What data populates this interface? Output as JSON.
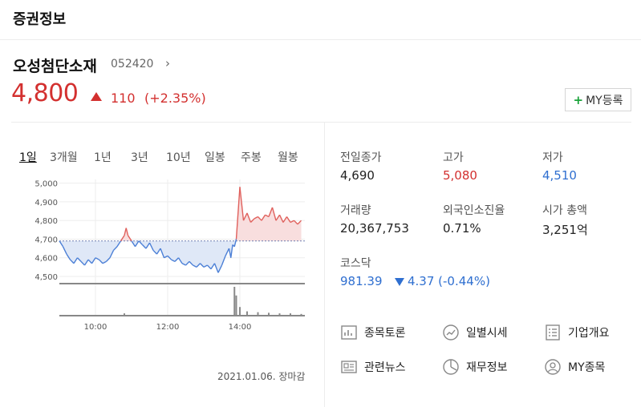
{
  "header": {
    "title": "증권정보"
  },
  "stock": {
    "name": "오성첨단소재",
    "code": "052420",
    "chevron": "›",
    "price": "4,800",
    "change": "110",
    "change_pct": "(+2.35%)",
    "my_button": "MY등록"
  },
  "tabs": [
    "1일",
    "3개월",
    "1년",
    "3년",
    "10년",
    "일봉",
    "주봉",
    "월봉"
  ],
  "stats": {
    "prev_close_label": "전일종가",
    "prev_close": "4,690",
    "high_label": "고가",
    "high": "5,080",
    "low_label": "저가",
    "low": "4,510",
    "volume_label": "거래량",
    "volume": "20,367,753",
    "foreign_label": "외국인소진율",
    "foreign": "0.71%",
    "mktcap_label": "시가 총액",
    "mktcap": "3,251억",
    "kosdaq_label": "코스닥",
    "kosdaq": "981.39",
    "kosdaq_change": "4.37 (-0.44%)"
  },
  "links": {
    "board": "종목토론",
    "daily": "일별시세",
    "company": "기업개요",
    "news": "관련뉴스",
    "finance": "재무정보",
    "mystock": "MY종목"
  },
  "date_stamp": "2021.01.06. 장마감",
  "colors": {
    "up": "#d3302f",
    "down": "#2f6fd0",
    "accent_green": "#1aa33a"
  },
  "chart_data": {
    "type": "line",
    "title": "",
    "prev_close": 4690,
    "ylim": [
      4470,
      5020
    ],
    "y_ticks": [
      "5,000",
      "4,900",
      "4,800",
      "4,700",
      "4,600",
      "4,500"
    ],
    "y_tick_values": [
      5000,
      4900,
      4800,
      4700,
      4600,
      4500
    ],
    "x_ticks": [
      "10:00",
      "12:00",
      "14:00"
    ],
    "x_tick_values": [
      10,
      12,
      14
    ],
    "xlim": [
      9,
      15.8
    ],
    "x": [
      9.0,
      9.1,
      9.2,
      9.3,
      9.4,
      9.5,
      9.6,
      9.7,
      9.8,
      9.9,
      10.0,
      10.1,
      10.2,
      10.3,
      10.4,
      10.5,
      10.6,
      10.7,
      10.8,
      10.85,
      10.9,
      11.0,
      11.1,
      11.2,
      11.3,
      11.4,
      11.5,
      11.6,
      11.7,
      11.8,
      11.9,
      12.0,
      12.1,
      12.2,
      12.3,
      12.4,
      12.5,
      12.6,
      12.7,
      12.8,
      12.9,
      13.0,
      13.1,
      13.2,
      13.3,
      13.4,
      13.5,
      13.6,
      13.7,
      13.75,
      13.8,
      13.85,
      13.9,
      14.0,
      14.1,
      14.2,
      14.3,
      14.4,
      14.5,
      14.6,
      14.7,
      14.8,
      14.9,
      15.0,
      15.1,
      15.2,
      15.3,
      15.4,
      15.5,
      15.6,
      15.7
    ],
    "series": [
      {
        "values": [
          4690,
          4660,
          4620,
          4590,
          4570,
          4600,
          4580,
          4560,
          4590,
          4570,
          4600,
          4590,
          4570,
          4580,
          4600,
          4640,
          4660,
          4690,
          4720,
          4760,
          4720,
          4690,
          4660,
          4690,
          4670,
          4650,
          4680,
          4640,
          4620,
          4650,
          4600,
          4610,
          4590,
          4580,
          4600,
          4570,
          4560,
          4580,
          4560,
          4550,
          4570,
          4550,
          4560,
          4540,
          4570,
          4520,
          4560,
          4610,
          4650,
          4600,
          4670,
          4660,
          4700,
          4980,
          4800,
          4840,
          4790,
          4810,
          4820,
          4800,
          4830,
          4820,
          4870,
          4800,
          4830,
          4790,
          4820,
          4790,
          4800,
          4780,
          4800
        ]
      }
    ],
    "volume": [
      {
        "x": 10.8,
        "v": 0.08
      },
      {
        "x": 13.85,
        "v": 1.0
      },
      {
        "x": 13.9,
        "v": 0.7
      },
      {
        "x": 14.0,
        "v": 0.3
      },
      {
        "x": 14.2,
        "v": 0.15
      },
      {
        "x": 14.5,
        "v": 0.12
      },
      {
        "x": 14.8,
        "v": 0.1
      },
      {
        "x": 15.1,
        "v": 0.08
      },
      {
        "x": 15.4,
        "v": 0.08
      },
      {
        "x": 15.7,
        "v": 0.06
      }
    ]
  }
}
